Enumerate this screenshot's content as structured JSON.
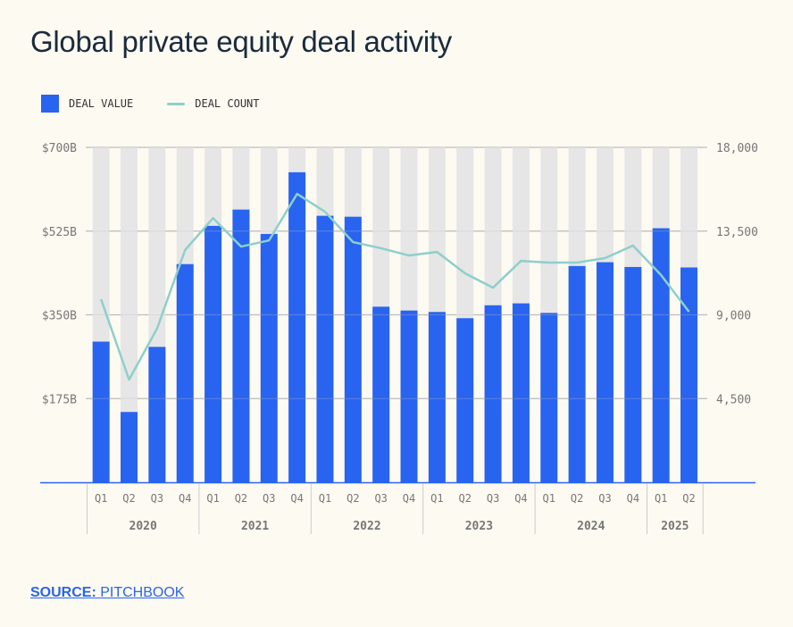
{
  "title": "Global private equity deal activity",
  "source": {
    "label": "SOURCE:",
    "value": "PITCHBOOK"
  },
  "colors": {
    "bar": "#2864f0",
    "bar_bg": "#e6e6e6",
    "line": "#8ecfcb",
    "grid": "#bdbdbd",
    "axis": "#2864f0"
  },
  "chart_data": {
    "type": "bar+line",
    "title": "Global private equity deal activity",
    "legend": [
      "DEAL VALUE",
      "DEAL COUNT"
    ],
    "legend_position": "top-left",
    "quarters": [
      "Q1",
      "Q2",
      "Q3",
      "Q4",
      "Q1",
      "Q2",
      "Q3",
      "Q4",
      "Q1",
      "Q2",
      "Q3",
      "Q4",
      "Q1",
      "Q2",
      "Q3",
      "Q4",
      "Q1",
      "Q2",
      "Q3",
      "Q4",
      "Q1",
      "Q2"
    ],
    "years": [
      {
        "label": "2020",
        "n": 4
      },
      {
        "label": "2021",
        "n": 4
      },
      {
        "label": "2022",
        "n": 4
      },
      {
        "label": "2023",
        "n": 4
      },
      {
        "label": "2024",
        "n": 4
      },
      {
        "label": "2025",
        "n": 2
      }
    ],
    "series": [
      {
        "name": "DEAL VALUE",
        "type": "bar",
        "axis": "left",
        "unit": "$B",
        "values": [
          294,
          147,
          283,
          456,
          536,
          570,
          519,
          648,
          557,
          555,
          367,
          359,
          356,
          343,
          370,
          374,
          354,
          452,
          460,
          450,
          531,
          449
        ]
      },
      {
        "name": "DEAL COUNT",
        "type": "line",
        "axis": "right",
        "values": [
          9840,
          5520,
          8260,
          12480,
          14200,
          12670,
          13000,
          15500,
          14540,
          12910,
          12580,
          12190,
          12380,
          11230,
          10460,
          11900,
          11810,
          11810,
          12050,
          12720,
          11140,
          9170
        ]
      }
    ],
    "y_left": {
      "ylim": [
        0,
        700
      ],
      "ticks": [
        175,
        350,
        525,
        700
      ],
      "tick_labels": [
        "$175B",
        "$350B",
        "$525B",
        "$700B"
      ]
    },
    "y_right": {
      "ylim": [
        0,
        18000
      ],
      "ticks": [
        4500,
        9000,
        13500,
        18000
      ],
      "tick_labels": [
        "4,500",
        "9,000",
        "13,500",
        "18,000"
      ]
    },
    "grid": true
  }
}
